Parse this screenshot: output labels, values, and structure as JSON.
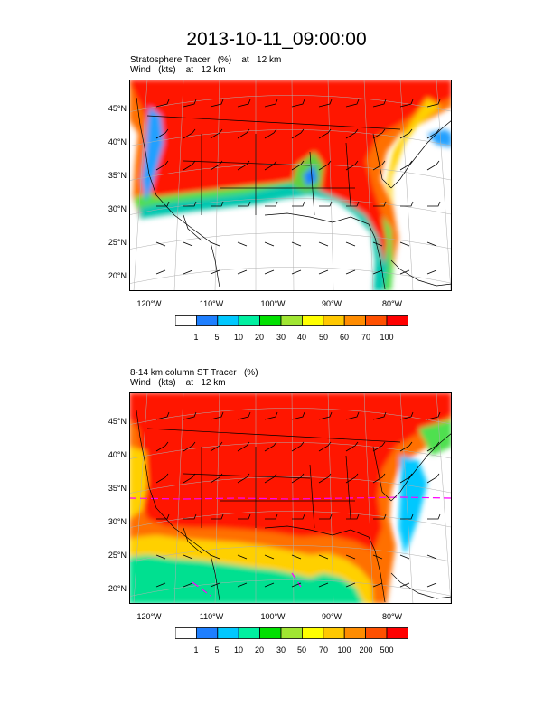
{
  "title": "2013-10-11_09:00:00",
  "panels": [
    {
      "id": "top",
      "subtitle_line1": "Stratosphere Tracer   (%)    at   12 km",
      "subtitle_line2": "Wind   (kts)    at   12 km",
      "lat_labels": [
        "45°N",
        "40°N",
        "35°N",
        "30°N",
        "25°N",
        "20°N"
      ],
      "lon_labels": [
        "120°W",
        "110°W",
        "100°W",
        "90°W",
        "80°W"
      ],
      "colorbar_labels": [
        "1",
        "5",
        "10",
        "20",
        "30",
        "40",
        "50",
        "60",
        "70",
        "100"
      ],
      "colorbar_colors": [
        "#ffffff",
        "#1e7fff",
        "#00c8ff",
        "#00f0a0",
        "#00e000",
        "#a0e632",
        "#ffff00",
        "#ffc800",
        "#ff8c00",
        "#ff5000",
        "#ff0000"
      ]
    },
    {
      "id": "bottom",
      "subtitle_line1": "8-14 km column ST Tracer   (%)",
      "subtitle_line2": "Wind   (kts)    at   12 km",
      "lat_labels": [
        "45°N",
        "40°N",
        "35°N",
        "30°N",
        "25°N",
        "20°N"
      ],
      "lon_labels": [
        "120°W",
        "110°W",
        "100°W",
        "90°W",
        "80°W"
      ],
      "colorbar_labels": [
        "1",
        "5",
        "10",
        "20",
        "30",
        "50",
        "70",
        "100",
        "200",
        "500"
      ],
      "colorbar_colors": [
        "#ffffff",
        "#1e7fff",
        "#00c8ff",
        "#00f0a0",
        "#00e000",
        "#a0e632",
        "#ffff00",
        "#ffc800",
        "#ff8c00",
        "#ff5000",
        "#ff0000"
      ]
    }
  ]
}
